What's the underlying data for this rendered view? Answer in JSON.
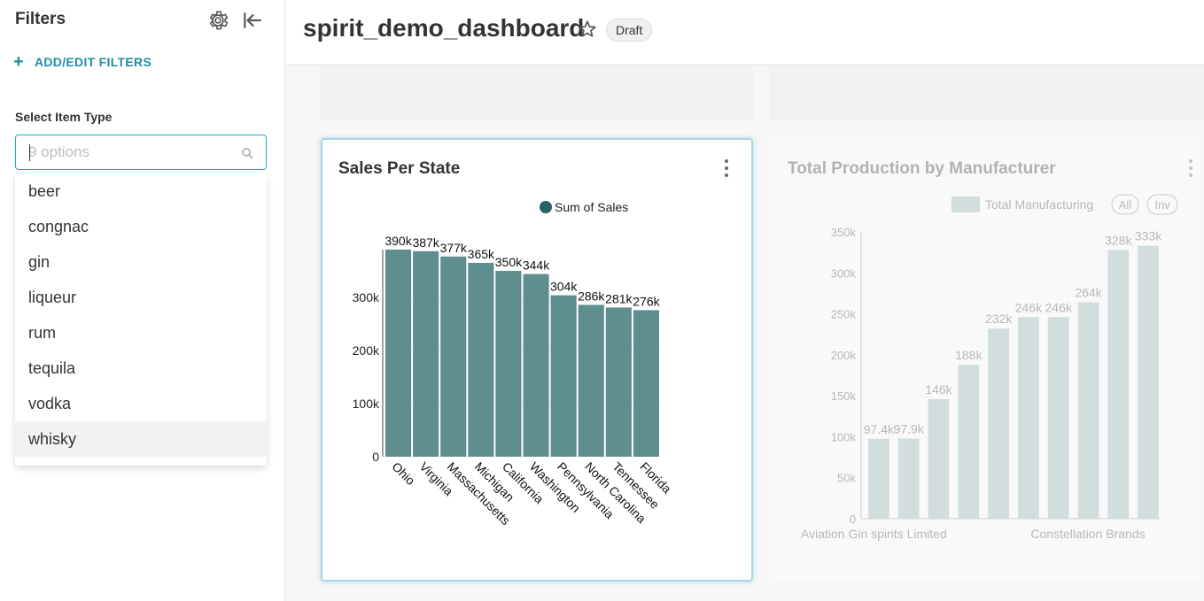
{
  "sidebar": {
    "title": "Filters",
    "gear_icon": "gear-icon",
    "collapse_icon": "collapse-left-icon",
    "add_filters_label": "ADD/EDIT FILTERS",
    "filter_label": "Select Item Type",
    "select": {
      "placeholder": "9 options",
      "value": ""
    },
    "options": [
      "beer",
      "congnac",
      "gin",
      "liqueur",
      "rum",
      "tequila",
      "vodka",
      "whisky"
    ],
    "highlighted_option": "whisky"
  },
  "header": {
    "title": "spirit_demo_dashboard",
    "star_icon": "star-icon",
    "badge": "Draft"
  },
  "colors": {
    "accent": "#1f8ea1",
    "bar": "#5f8e8e",
    "legend_dot": "#2a5f63",
    "faded_bar": "#b6cbcb"
  },
  "chart_data": [
    {
      "type": "bar",
      "title": "Sales Per State",
      "legend": [
        "Sum of Sales"
      ],
      "categories": [
        "Ohio",
        "Virginia",
        "Massachusetts",
        "Michigan",
        "California",
        "Washington",
        "Pennsylvania",
        "North Carolina",
        "Tennessee",
        "Florida"
      ],
      "values": [
        390000,
        387000,
        377000,
        365000,
        350000,
        344000,
        304000,
        286000,
        281000,
        276000
      ],
      "value_labels": [
        "390k",
        "387k",
        "377k",
        "365k",
        "350k",
        "344k",
        "304k",
        "286k",
        "281k",
        "276k"
      ],
      "yticks": [
        "0",
        "100k",
        "200k",
        "300k"
      ],
      "ylim": [
        0,
        390000
      ]
    },
    {
      "type": "bar",
      "title": "Total Production by Manufacturer",
      "legend": [
        "Total Manufacturing"
      ],
      "legend_buttons": [
        "All",
        "Inv"
      ],
      "values": [
        97400,
        97900,
        146000,
        188000,
        232000,
        246000,
        246000,
        264000,
        328000,
        333000
      ],
      "value_labels": [
        "97.4k",
        "97.9k",
        "146k",
        "188k",
        "232k",
        "246k",
        "246k",
        "264k",
        "328k",
        "333k"
      ],
      "xtick_labels": [
        "Aviation Gin spirits Limited",
        "Constellation Brands"
      ],
      "yticks": [
        "0",
        "50k",
        "100k",
        "150k",
        "200k",
        "250k",
        "300k",
        "350k"
      ],
      "ylim": [
        0,
        350000
      ]
    }
  ]
}
